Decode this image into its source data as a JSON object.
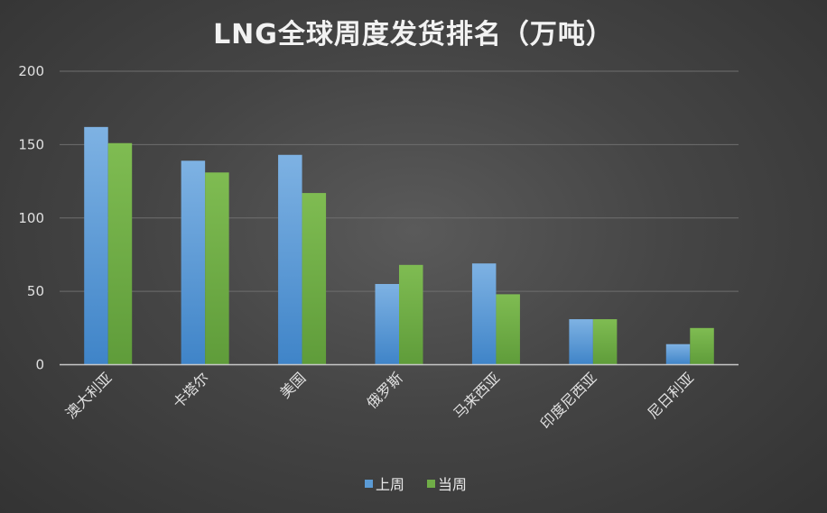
{
  "chart_data": {
    "type": "bar",
    "title": "LNG全球周度发货排名（万吨）",
    "categories": [
      "澳大利亚",
      "卡塔尔",
      "美国",
      "俄罗斯",
      "马来西亚",
      "印度尼西亚",
      "尼日利亚"
    ],
    "series": [
      {
        "name": "上周",
        "values": [
          162,
          139,
          143,
          55,
          69,
          31,
          14
        ],
        "color": "#5b9bd5"
      },
      {
        "name": "当周",
        "values": [
          151,
          131,
          117,
          68,
          48,
          31,
          25
        ],
        "color": "#70ad47"
      }
    ],
    "yticks": [
      0,
      50,
      100,
      150,
      200
    ],
    "ylim": [
      0,
      200
    ],
    "grid": true,
    "legend_position": "bottom"
  }
}
